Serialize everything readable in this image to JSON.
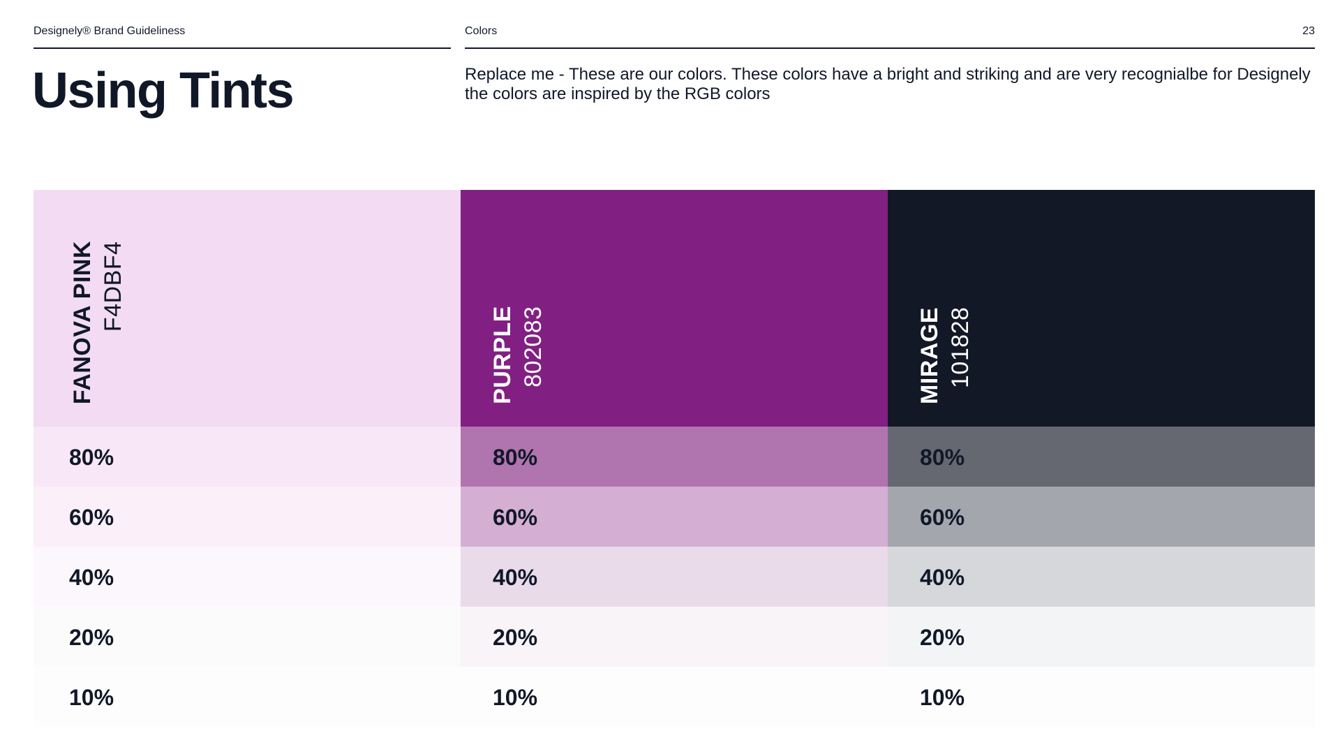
{
  "header": {
    "brand_label": "Designely® Brand Guideliness",
    "section_label": "Colors",
    "page_number": "23"
  },
  "title": "Using Tints",
  "description": "Replace me - These are our colors. These colors have a bright and striking and are very recognialbe for Designely the colors are inspired by the RGB colors",
  "colors": [
    {
      "name": "FANOVA PINK",
      "hex": "F4DBF4",
      "swatch": "#F2DBF3",
      "text_color": "#101828",
      "tints": [
        {
          "label": "80%",
          "color": "#F7E7F7"
        },
        {
          "label": "60%",
          "color": "#FBF0FA"
        },
        {
          "label": "40%",
          "color": "#FCF7FC"
        },
        {
          "label": "20%",
          "color": "#FBFBFB"
        },
        {
          "label": "10%",
          "color": "#FDFDFD"
        }
      ]
    },
    {
      "name": "PURPLE",
      "hex": "802083",
      "swatch": "#812082",
      "text_color": "#FFFFFF",
      "tints": [
        {
          "label": "80%",
          "color": "#B074AF"
        },
        {
          "label": "60%",
          "color": "#D4AED3"
        },
        {
          "label": "40%",
          "color": "#E9DBE9"
        },
        {
          "label": "20%",
          "color": "#F9F4F8"
        },
        {
          "label": "10%",
          "color": "#FDFDFD"
        }
      ]
    },
    {
      "name": "MIRAGE",
      "hex": "101828",
      "swatch": "#131826",
      "text_color": "#FFFFFF",
      "tints": [
        {
          "label": "80%",
          "color": "#656871"
        },
        {
          "label": "60%",
          "color": "#A3A6AC"
        },
        {
          "label": "40%",
          "color": "#D6D7DA"
        },
        {
          "label": "20%",
          "color": "#F3F4F5"
        },
        {
          "label": "10%",
          "color": "#FDFDFD"
        }
      ]
    }
  ]
}
